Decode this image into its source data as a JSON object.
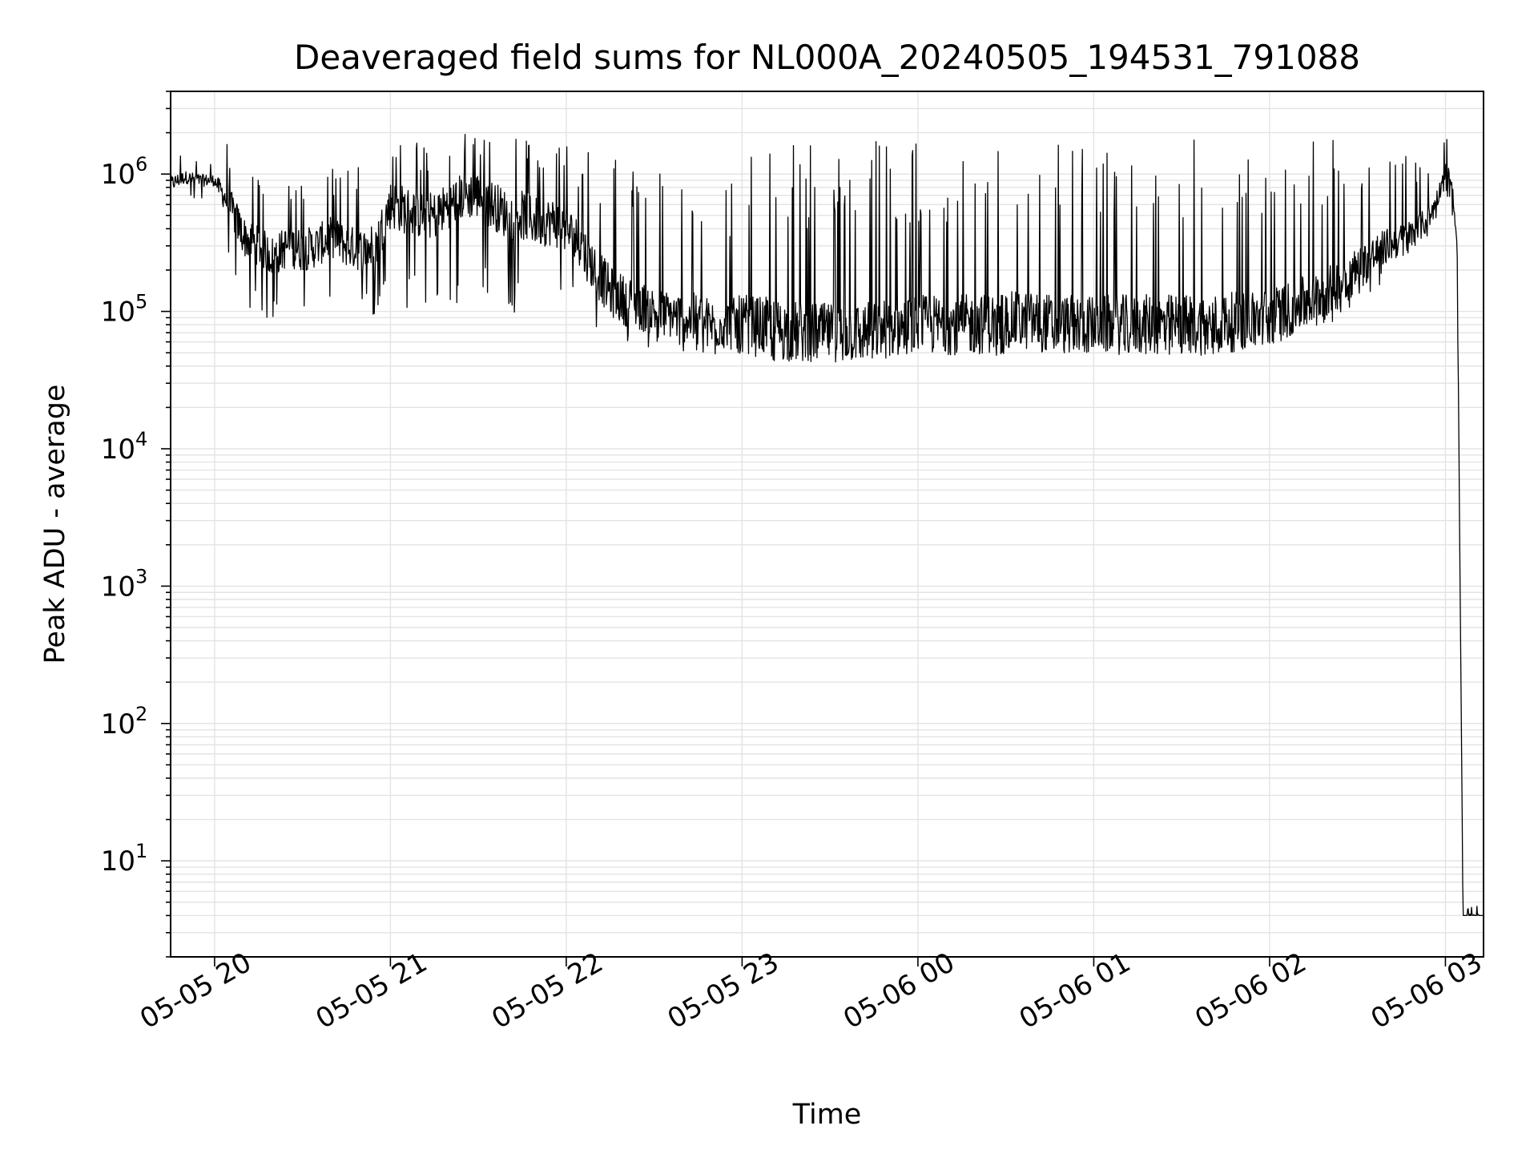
{
  "chart_data": {
    "type": "line",
    "title": "Deaveraged field sums for NL000A_20240505_194531_791088",
    "xlabel": "Time",
    "ylabel": "Peak ADU - average",
    "yscale": "log",
    "ylim": [
      2,
      4000000
    ],
    "xlim": [
      "2024-05-05 19:45",
      "2024-05-06 03:13"
    ],
    "grid": true,
    "legend": "none",
    "line_color": "#000000",
    "x_ticks": [
      {
        "t": "2024-05-05 20:00",
        "label": "05-05 20"
      },
      {
        "t": "2024-05-05 21:00",
        "label": "05-05 21"
      },
      {
        "t": "2024-05-05 22:00",
        "label": "05-05 22"
      },
      {
        "t": "2024-05-05 23:00",
        "label": "05-05 23"
      },
      {
        "t": "2024-05-06 00:00",
        "label": "05-06 00"
      },
      {
        "t": "2024-05-06 01:00",
        "label": "05-06 01"
      },
      {
        "t": "2024-05-06 02:00",
        "label": "05-06 02"
      },
      {
        "t": "2024-05-06 03:00",
        "label": "05-06 03"
      }
    ],
    "y_ticks": [
      {
        "value": 10,
        "base": "10",
        "exp": "1"
      },
      {
        "value": 100,
        "base": "10",
        "exp": "2"
      },
      {
        "value": 1000,
        "base": "10",
        "exp": "3"
      },
      {
        "value": 10000,
        "base": "10",
        "exp": "4"
      },
      {
        "value": 100000,
        "base": "10",
        "exp": "5"
      },
      {
        "value": 1000000,
        "base": "10",
        "exp": "6"
      }
    ],
    "series": [
      {
        "x": [
          "2024-05-05 19:45",
          "2024-05-05 19:50",
          "2024-05-05 19:55",
          "2024-05-05 20:00",
          "2024-05-05 20:05",
          "2024-05-05 20:10",
          "2024-05-05 20:15",
          "2024-05-05 20:20",
          "2024-05-05 20:25",
          "2024-05-05 20:30",
          "2024-05-05 20:35",
          "2024-05-05 20:40",
          "2024-05-05 20:45",
          "2024-05-05 20:50",
          "2024-05-05 20:55",
          "2024-05-05 21:00",
          "2024-05-05 21:05",
          "2024-05-05 21:10",
          "2024-05-05 21:15",
          "2024-05-05 21:20",
          "2024-05-05 21:25",
          "2024-05-05 21:30",
          "2024-05-05 21:35",
          "2024-05-05 21:40",
          "2024-05-05 21:45",
          "2024-05-05 21:50",
          "2024-05-05 21:55",
          "2024-05-05 22:00",
          "2024-05-05 22:05",
          "2024-05-05 22:10",
          "2024-05-05 22:15",
          "2024-05-05 22:20",
          "2024-05-05 22:25",
          "2024-05-05 22:30",
          "2024-05-05 22:35",
          "2024-05-05 22:40",
          "2024-05-05 22:45",
          "2024-05-05 22:50",
          "2024-05-05 22:55",
          "2024-05-05 23:00",
          "2024-05-05 23:10",
          "2024-05-05 23:20",
          "2024-05-05 23:30",
          "2024-05-05 23:40",
          "2024-05-05 23:50",
          "2024-05-06 00:00",
          "2024-05-06 00:10",
          "2024-05-06 00:20",
          "2024-05-06 00:30",
          "2024-05-06 00:40",
          "2024-05-06 00:50",
          "2024-05-06 01:00",
          "2024-05-06 01:10",
          "2024-05-06 01:20",
          "2024-05-06 01:30",
          "2024-05-06 01:40",
          "2024-05-06 01:50",
          "2024-05-06 02:00",
          "2024-05-06 02:10",
          "2024-05-06 02:20",
          "2024-05-06 02:30",
          "2024-05-06 02:35",
          "2024-05-06 02:40",
          "2024-05-06 02:45",
          "2024-05-06 02:50",
          "2024-05-06 02:55",
          "2024-05-06 02:58",
          "2024-05-06 03:00",
          "2024-05-06 03:02",
          "2024-05-06 03:04",
          "2024-05-06 03:06",
          "2024-05-06 03:08",
          "2024-05-06 03:10",
          "2024-05-06 03:13"
        ],
        "y": [
          850000,
          950000,
          900000,
          900000,
          600000,
          350000,
          300000,
          250000,
          300000,
          280000,
          300000,
          350000,
          300000,
          280000,
          300000,
          600000,
          550000,
          500000,
          500000,
          600000,
          700000,
          700000,
          600000,
          500000,
          500000,
          450000,
          450000,
          400000,
          300000,
          200000,
          140000,
          120000,
          110000,
          100000,
          95000,
          90000,
          85000,
          80000,
          80000,
          80000,
          75000,
          70000,
          70000,
          70000,
          75000,
          80000,
          80000,
          80000,
          85000,
          85000,
          80000,
          80000,
          80000,
          80000,
          80000,
          80000,
          85000,
          90000,
          110000,
          140000,
          200000,
          250000,
          300000,
          330000,
          380000,
          500000,
          750000,
          1100000,
          900000,
          300000,
          4,
          4,
          4,
          4
        ],
        "y_min": [
          600000,
          700000,
          600000,
          600000,
          200000,
          120000,
          90000,
          80000,
          80000,
          80000,
          80000,
          90000,
          90000,
          100000,
          90000,
          90000,
          90000,
          100000,
          100000,
          110000,
          110000,
          110000,
          100000,
          100000,
          90000,
          90000,
          100000,
          95000,
          80000,
          70000,
          65000,
          60000,
          55000,
          55000,
          55000,
          50000,
          48000,
          45000,
          45000,
          45000,
          42000,
          40000,
          42000,
          45000,
          45000,
          48000,
          45000,
          45000,
          48000,
          50000,
          50000,
          50000,
          48000,
          45000,
          45000,
          48000,
          50000,
          55000,
          65000,
          80000,
          100000,
          130000,
          180000,
          230000,
          270000,
          350000,
          500000,
          700000,
          600000,
          200000,
          4,
          4,
          4,
          4
        ],
        "y_max": [
          1600000,
          1500000,
          1300000,
          1200000,
          1800000,
          1400000,
          1000000,
          1000000,
          1100000,
          1100000,
          1100000,
          1100000,
          1200000,
          1400000,
          1600000,
          1800000,
          1800000,
          1700000,
          1800000,
          1900000,
          2000000,
          2000000,
          2000000,
          2000000,
          1900000,
          1900000,
          1900000,
          1800000,
          1700000,
          1500000,
          1400000,
          1300000,
          1200000,
          1100000,
          1000000,
          1000000,
          1600000,
          1000000,
          900000,
          1800000,
          1800000,
          1700000,
          1500000,
          1800000,
          1800000,
          1800000,
          1800000,
          1800000,
          1800000,
          1800000,
          1900000,
          1800000,
          1900000,
          1900000,
          1900000,
          2000000,
          1900000,
          1900000,
          1900000,
          1800000,
          1700000,
          1600000,
          1500000,
          1600000,
          1700000,
          1500000,
          1500000,
          2100000,
          1200000,
          300000,
          4,
          5,
          5,
          4
        ]
      }
    ]
  }
}
